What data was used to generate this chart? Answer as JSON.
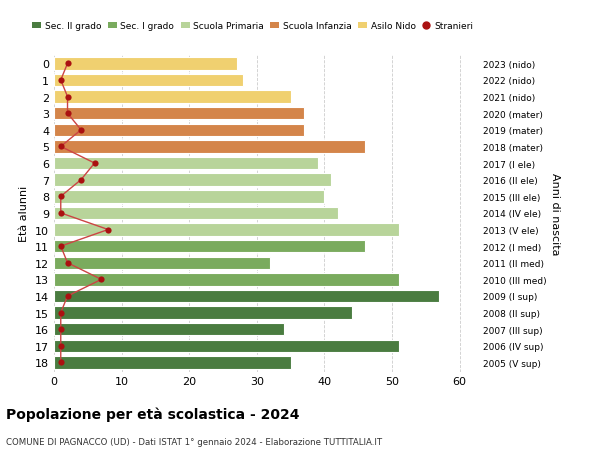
{
  "ages": [
    18,
    17,
    16,
    15,
    14,
    13,
    12,
    11,
    10,
    9,
    8,
    7,
    6,
    5,
    4,
    3,
    2,
    1,
    0
  ],
  "bar_values": [
    35,
    51,
    34,
    44,
    57,
    51,
    32,
    46,
    51,
    42,
    40,
    41,
    39,
    46,
    37,
    37,
    35,
    28,
    27
  ],
  "stranieri_values": [
    1,
    1,
    1,
    1,
    2,
    7,
    2,
    1,
    8,
    1,
    1,
    4,
    6,
    1,
    4,
    2,
    2,
    1,
    2
  ],
  "right_labels": [
    "2005 (V sup)",
    "2006 (IV sup)",
    "2007 (III sup)",
    "2008 (II sup)",
    "2009 (I sup)",
    "2010 (III med)",
    "2011 (II med)",
    "2012 (I med)",
    "2013 (V ele)",
    "2014 (IV ele)",
    "2015 (III ele)",
    "2016 (II ele)",
    "2017 (I ele)",
    "2018 (mater)",
    "2019 (mater)",
    "2020 (mater)",
    "2021 (nido)",
    "2022 (nido)",
    "2023 (nido)"
  ],
  "bar_colors": [
    "#4a7c40",
    "#4a7c40",
    "#4a7c40",
    "#4a7c40",
    "#4a7c40",
    "#7aab5e",
    "#7aab5e",
    "#7aab5e",
    "#b8d49a",
    "#b8d49a",
    "#b8d49a",
    "#b8d49a",
    "#b8d49a",
    "#d4854a",
    "#d4854a",
    "#d4854a",
    "#f0d070",
    "#f0d070",
    "#f0d070"
  ],
  "legend_colors": [
    "#4a7c40",
    "#7aab5e",
    "#b8d49a",
    "#d4854a",
    "#f0d070"
  ],
  "legend_labels": [
    "Sec. II grado",
    "Sec. I grado",
    "Scuola Primaria",
    "Scuola Infanzia",
    "Asilo Nido"
  ],
  "title": "Popolazione per età scolastica - 2024",
  "subtitle": "COMUNE DI PAGNACCO (UD) - Dati ISTAT 1° gennaio 2024 - Elaborazione TUTTITALIA.IT",
  "ylabel": "Età alunni",
  "ylabel_right": "Anni di nascita",
  "xlim": [
    0,
    63
  ],
  "background_color": "#ffffff",
  "grid_color": "#cccccc",
  "stranieri_color": "#aa1111",
  "stranieri_line_color": "#cc4444"
}
